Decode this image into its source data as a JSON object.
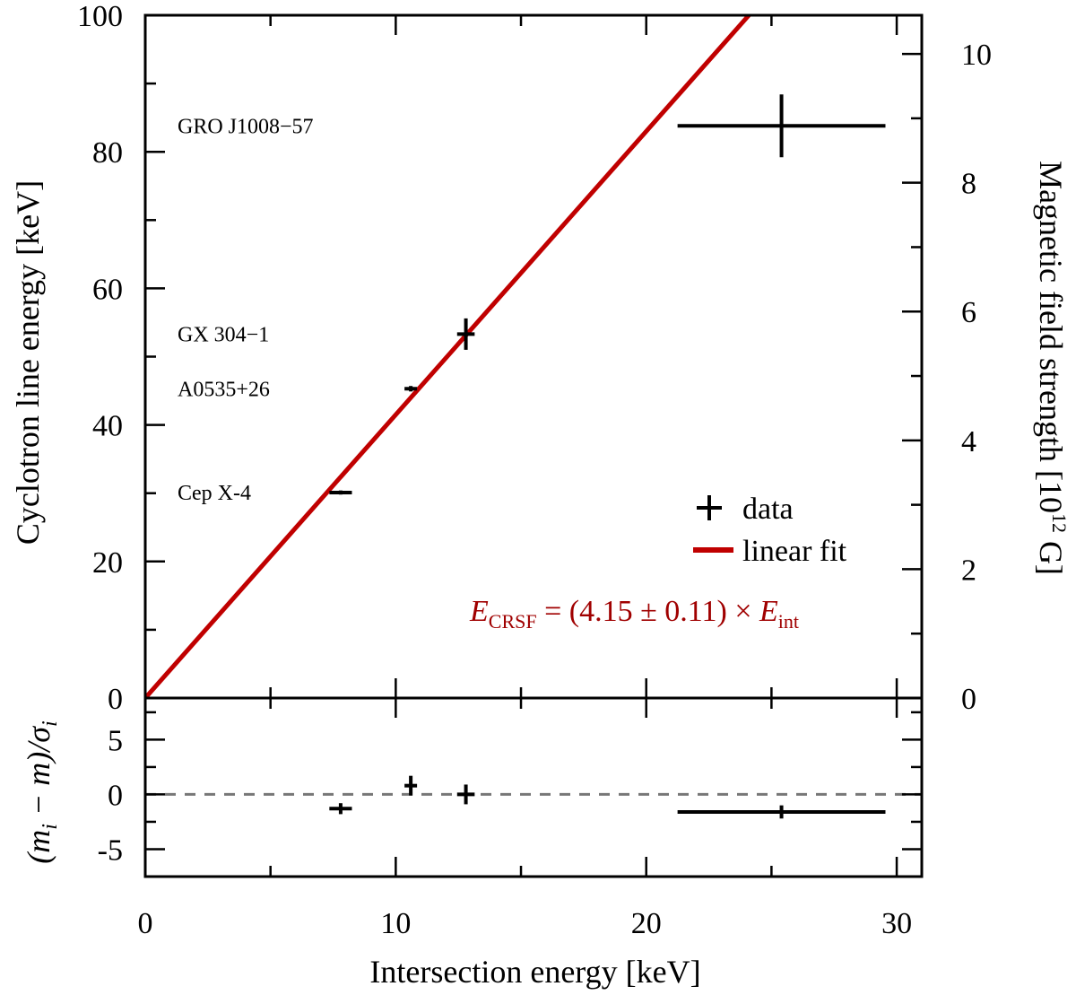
{
  "chart_data": [
    {
      "panel": "main",
      "type": "scatter",
      "xlabel": "Intersection energy [keV]",
      "ylabel": "Cyclotron line energy [keV]",
      "y2label_main": "Magnetic field strength [10",
      "y2label_sup": "12",
      "y2label_end": " G]",
      "xlim": [
        0,
        31
      ],
      "ylim": [
        0,
        100
      ],
      "y2lim": [
        0,
        10.6
      ],
      "xticks": [
        0,
        10,
        20,
        30
      ],
      "yticks": [
        0,
        20,
        40,
        60,
        80,
        100
      ],
      "y2ticks": [
        0,
        2,
        4,
        6,
        8,
        10
      ],
      "series": [
        {
          "name": "data",
          "points": [
            {
              "x": 7.8,
              "xerr": 0.45,
              "y": 30.1,
              "yerr": 0.3
            },
            {
              "x": 10.6,
              "xerr": 0.25,
              "y": 45.3,
              "yerr": 0.4
            },
            {
              "x": 12.8,
              "xerr": 0.35,
              "y": 53.3,
              "yerr": 2.3
            },
            {
              "x": 25.4,
              "xerr": 4.15,
              "y": 83.8,
              "yerr": 4.6
            }
          ]
        },
        {
          "name": "linear fit",
          "slope": 4.15,
          "color": "#c00000"
        }
      ],
      "annotations": [
        "GRO J1008−57",
        "GX 304−1",
        "A0535+26",
        "Cep X-4"
      ],
      "annotation_y": [
        83.8,
        53.3,
        45.3,
        30.1
      ],
      "legend": {
        "placement": "right",
        "entries": [
          "data",
          "linear fit"
        ]
      },
      "equation": {
        "e_sym": "E",
        "e_sub": "CRSF",
        "middle": " = (4.15 ± 0.11) × ",
        "int_sym": "E",
        "int_sub": "int",
        "color": "#a00000"
      }
    },
    {
      "panel": "residuals",
      "type": "scatter",
      "ylabel": "(m",
      "ylabel_parts": [
        "(m",
        "i",
        " − m)/σ",
        "i"
      ],
      "ylim": [
        -7.5,
        8.8
      ],
      "yticks": [
        -5,
        0,
        5
      ],
      "zero_line": true,
      "points": [
        {
          "x": 7.8,
          "xerr": 0.45,
          "y": -1.3,
          "yerr": 0.5
        },
        {
          "x": 10.6,
          "xerr": 0.25,
          "y": 0.8,
          "yerr": 0.9
        },
        {
          "x": 12.8,
          "xerr": 0.35,
          "y": 0.0,
          "yerr": 0.9
        },
        {
          "x": 25.4,
          "xerr": 4.15,
          "y": -1.6,
          "yerr": 0.6
        }
      ]
    }
  ]
}
